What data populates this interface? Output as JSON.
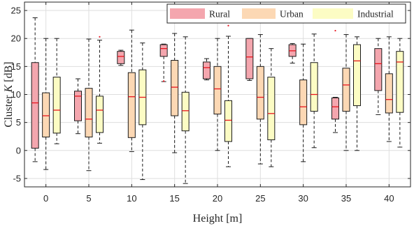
{
  "chart_data": {
    "type": "boxplot",
    "title": "",
    "xlabel": "Height [m]",
    "ylabel": "Cluster K [dB]",
    "ylim": [
      -6.5,
      26.5
    ],
    "yticks": [
      -5,
      0,
      5,
      10,
      15,
      20,
      25
    ],
    "categories": [
      "0",
      "5",
      "10",
      "15",
      "20",
      "25",
      "30",
      "35",
      "40"
    ],
    "grid": true,
    "legend_position": "top-right",
    "series": [
      {
        "name": "Rural",
        "color": "#f4a6ae",
        "boxes": [
          {
            "min": -2.0,
            "q1": 0.4,
            "median": 8.5,
            "q3": 15.7,
            "max": 23.7,
            "outliers": []
          },
          {
            "min": 3.0,
            "q1": 5.3,
            "median": 9.7,
            "q3": 10.6,
            "max": 12.8,
            "outliers": []
          },
          {
            "min": 15.2,
            "q1": 15.5,
            "median": 16.8,
            "q3": 17.7,
            "max": 17.9,
            "outliers": []
          },
          {
            "min": 12.3,
            "q1": 16.8,
            "median": 18.2,
            "q3": 18.9,
            "max": 19.0,
            "outliers": [
              12.4
            ]
          },
          {
            "min": 12.6,
            "q1": 12.8,
            "median": 14.8,
            "q3": 15.8,
            "max": 16.4,
            "outliers": []
          },
          {
            "min": 12.5,
            "q1": 12.8,
            "median": 16.7,
            "q3": 20.0,
            "max": 20.0,
            "outliers": []
          },
          {
            "min": 15.6,
            "q1": 16.8,
            "median": 17.8,
            "q3": 18.9,
            "max": 19.1,
            "outliers": []
          },
          {
            "min": 3.2,
            "q1": 5.6,
            "median": 7.8,
            "q3": 9.4,
            "max": 9.5,
            "outliers": [
              21.4
            ]
          },
          {
            "min": 6.4,
            "q1": 10.7,
            "median": 15.5,
            "q3": 18.2,
            "max": 20.0,
            "outliers": []
          }
        ]
      },
      {
        "name": "Urban",
        "color": "#fcd8b4",
        "boxes": [
          {
            "min": -3.4,
            "q1": 2.4,
            "median": 6.2,
            "q3": 10.3,
            "max": 20.0,
            "outliers": []
          },
          {
            "min": -3.6,
            "q1": 2.4,
            "median": 5.6,
            "q3": 11.1,
            "max": 19.9,
            "outliers": []
          },
          {
            "min": -0.2,
            "q1": 2.3,
            "median": 9.6,
            "q3": 13.9,
            "max": 21.5,
            "outliers": []
          },
          {
            "min": -0.4,
            "q1": 6.2,
            "median": 11.3,
            "q3": 16.1,
            "max": 20.9,
            "outliers": []
          },
          {
            "min": 0.0,
            "q1": 6.5,
            "median": 11.0,
            "q3": 15.0,
            "max": 20.0,
            "outliers": []
          },
          {
            "min": -2.4,
            "q1": 5.6,
            "median": 9.5,
            "q3": 15.0,
            "max": 20.7,
            "outliers": []
          },
          {
            "min": -2.0,
            "q1": 4.6,
            "median": 7.8,
            "q3": 12.6,
            "max": 19.0,
            "outliers": []
          },
          {
            "min": 0.0,
            "q1": 7.0,
            "median": 11.7,
            "q3": 14.7,
            "max": 20.7,
            "outliers": []
          },
          {
            "min": 1.6,
            "q1": 6.7,
            "median": 9.1,
            "q3": 13.7,
            "max": 20.3,
            "outliers": []
          }
        ]
      },
      {
        "name": "Industrial",
        "color": "#fcfcc4",
        "boxes": [
          {
            "min": 1.2,
            "q1": 3.1,
            "median": 7.2,
            "q3": 13.1,
            "max": 20.0,
            "outliers": []
          },
          {
            "min": 1.3,
            "q1": 3.2,
            "median": 7.2,
            "q3": 9.7,
            "max": 19.7,
            "outliers": [
              20.3
            ]
          },
          {
            "min": -5.2,
            "q1": 4.6,
            "median": 9.5,
            "q3": 14.4,
            "max": 19.2,
            "outliers": []
          },
          {
            "min": -5.9,
            "q1": 3.5,
            "median": 7.1,
            "q3": 10.4,
            "max": 20.3,
            "outliers": []
          },
          {
            "min": -2.9,
            "q1": 1.6,
            "median": 5.4,
            "q3": 8.9,
            "max": 20.4,
            "outliers": [
              22.3
            ]
          },
          {
            "min": -2.9,
            "q1": 1.9,
            "median": 6.6,
            "q3": 13.1,
            "max": 18.2,
            "outliers": []
          },
          {
            "min": 0.5,
            "q1": 7.0,
            "median": 10.0,
            "q3": 15.7,
            "max": 20.8,
            "outliers": []
          },
          {
            "min": 0.0,
            "q1": 8.0,
            "median": 16.0,
            "q3": 18.9,
            "max": 20.3,
            "outliers": []
          },
          {
            "min": 0.6,
            "q1": 6.8,
            "median": 15.8,
            "q3": 17.7,
            "max": 20.0,
            "outliers": []
          }
        ]
      }
    ],
    "median_color": "#e8141e",
    "outlier_color": "#e8141e"
  }
}
